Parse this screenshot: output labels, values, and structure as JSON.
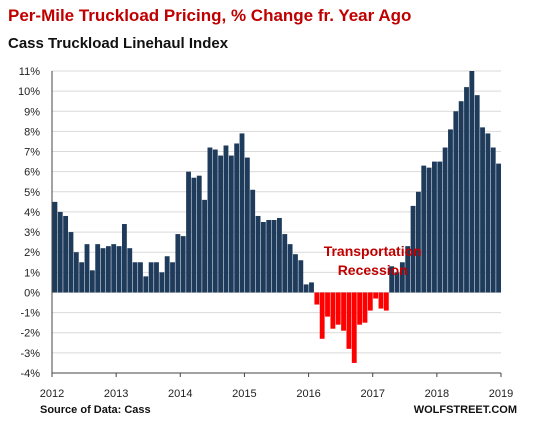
{
  "chart_data": {
    "type": "bar",
    "title": "Per-Mile Truckload Pricing, % Change fr. Year Ago",
    "subtitle": "Cass Truckload Linehaul Index",
    "source": "Source of Data: Cass",
    "credit": "WOLFSTREET.COM",
    "annotation": [
      "Transportation",
      "Recession"
    ],
    "ylim": [
      -4,
      11
    ],
    "yticks": [
      "11%",
      "10%",
      "9%",
      "8%",
      "7%",
      "6%",
      "5%",
      "4%",
      "3%",
      "2%",
      "1%",
      "0%",
      "-1%",
      "-2%",
      "-3%",
      "-4%"
    ],
    "ytick_values": [
      11,
      10,
      9,
      8,
      7,
      6,
      5,
      4,
      3,
      2,
      1,
      0,
      -1,
      -2,
      -3,
      -4
    ],
    "xticks": [
      "2012",
      "2013",
      "2014",
      "2015",
      "2016",
      "2017",
      "2018",
      "2019"
    ],
    "start": "2012-01",
    "positive_color": "#1f3b5c",
    "negative_color": "#ff0000",
    "gridlines": true,
    "values": [
      4.5,
      4.0,
      3.8,
      3.0,
      2.0,
      1.5,
      2.4,
      1.1,
      2.4,
      2.2,
      2.3,
      2.4,
      2.3,
      3.4,
      2.2,
      1.5,
      1.5,
      0.8,
      1.5,
      1.5,
      1.0,
      1.8,
      1.5,
      2.9,
      2.8,
      6.0,
      5.7,
      5.8,
      4.6,
      7.2,
      7.1,
      6.8,
      7.3,
      6.8,
      7.4,
      7.9,
      6.7,
      5.1,
      3.8,
      3.5,
      3.6,
      3.6,
      3.7,
      2.9,
      2.4,
      1.9,
      1.6,
      0.4,
      0.5,
      -0.6,
      -2.3,
      -1.2,
      -1.8,
      -1.6,
      -1.9,
      -2.8,
      -3.5,
      -1.6,
      -1.5,
      -0.9,
      -0.3,
      -0.8,
      -0.9,
      1.3,
      1.0,
      1.5,
      2.3,
      4.3,
      5.0,
      6.3,
      6.2,
      6.5,
      6.5,
      7.2,
      8.1,
      9.0,
      9.5,
      10.2,
      11.0,
      9.8,
      8.2,
      7.9,
      7.2,
      6.4
    ]
  }
}
